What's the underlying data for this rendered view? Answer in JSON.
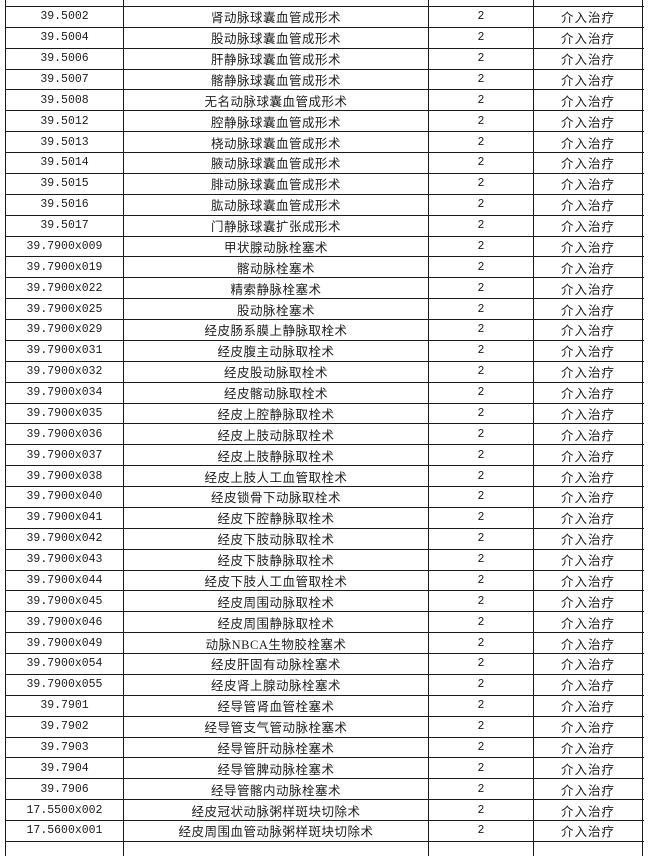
{
  "colors": {
    "border": "#1b1b1b",
    "text": "#1d1d1d",
    "background": "#ffffff"
  },
  "table": {
    "category_value": "介入治疗",
    "rows": [
      {
        "code": "39.5002",
        "name": "肾动脉球囊血管成形术",
        "count": "2",
        "category": "介入治疗"
      },
      {
        "code": "39.5004",
        "name": "股动脉球囊血管成形术",
        "count": "2",
        "category": "介入治疗"
      },
      {
        "code": "39.5006",
        "name": "肝静脉球囊血管成形术",
        "count": "2",
        "category": "介入治疗"
      },
      {
        "code": "39.5007",
        "name": "髂静脉球囊血管成形术",
        "count": "2",
        "category": "介入治疗"
      },
      {
        "code": "39.5008",
        "name": "无名动脉球囊血管成形术",
        "count": "2",
        "category": "介入治疗"
      },
      {
        "code": "39.5012",
        "name": "腔静脉球囊血管成形术",
        "count": "2",
        "category": "介入治疗"
      },
      {
        "code": "39.5013",
        "name": "桡动脉球囊血管成形术",
        "count": "2",
        "category": "介入治疗"
      },
      {
        "code": "39.5014",
        "name": "腋动脉球囊血管成形术",
        "count": "2",
        "category": "介入治疗"
      },
      {
        "code": "39.5015",
        "name": "腓动脉球囊血管成形术",
        "count": "2",
        "category": "介入治疗"
      },
      {
        "code": "39.5016",
        "name": "肱动脉球囊血管成形术",
        "count": "2",
        "category": "介入治疗"
      },
      {
        "code": "39.5017",
        "name": "门静脉球囊扩张成形术",
        "count": "2",
        "category": "介入治疗"
      },
      {
        "code": "39.7900x009",
        "name": "甲状腺动脉栓塞术",
        "count": "2",
        "category": "介入治疗"
      },
      {
        "code": "39.7900x019",
        "name": "髂动脉栓塞术",
        "count": "2",
        "category": "介入治疗"
      },
      {
        "code": "39.7900x022",
        "name": "精索静脉栓塞术",
        "count": "2",
        "category": "介入治疗"
      },
      {
        "code": "39.7900x025",
        "name": "股动脉栓塞术",
        "count": "2",
        "category": "介入治疗"
      },
      {
        "code": "39.7900x029",
        "name": "经皮肠系膜上静脉取栓术",
        "count": "2",
        "category": "介入治疗"
      },
      {
        "code": "39.7900x031",
        "name": "经皮腹主动脉取栓术",
        "count": "2",
        "category": "介入治疗"
      },
      {
        "code": "39.7900x032",
        "name": "经皮股动脉取栓术",
        "count": "2",
        "category": "介入治疗"
      },
      {
        "code": "39.7900x034",
        "name": "经皮髂动脉取栓术",
        "count": "2",
        "category": "介入治疗"
      },
      {
        "code": "39.7900x035",
        "name": "经皮上腔静脉取栓术",
        "count": "2",
        "category": "介入治疗"
      },
      {
        "code": "39.7900x036",
        "name": "经皮上肢动脉取栓术",
        "count": "2",
        "category": "介入治疗"
      },
      {
        "code": "39.7900x037",
        "name": "经皮上肢静脉取栓术",
        "count": "2",
        "category": "介入治疗"
      },
      {
        "code": "39.7900x038",
        "name": "经皮上肢人工血管取栓术",
        "count": "2",
        "category": "介入治疗"
      },
      {
        "code": "39.7900x040",
        "name": "经皮锁骨下动脉取栓术",
        "count": "2",
        "category": "介入治疗"
      },
      {
        "code": "39.7900x041",
        "name": "经皮下腔静脉取栓术",
        "count": "2",
        "category": "介入治疗"
      },
      {
        "code": "39.7900x042",
        "name": "经皮下肢动脉取栓术",
        "count": "2",
        "category": "介入治疗"
      },
      {
        "code": "39.7900x043",
        "name": "经皮下肢静脉取栓术",
        "count": "2",
        "category": "介入治疗"
      },
      {
        "code": "39.7900x044",
        "name": "经皮下肢人工血管取栓术",
        "count": "2",
        "category": "介入治疗"
      },
      {
        "code": "39.7900x045",
        "name": "经皮周围动脉取栓术",
        "count": "2",
        "category": "介入治疗"
      },
      {
        "code": "39.7900x046",
        "name": "经皮周围静脉取栓术",
        "count": "2",
        "category": "介入治疗"
      },
      {
        "code": "39.7900x049",
        "name": "动脉NBCA生物胶栓塞术",
        "count": "2",
        "category": "介入治疗"
      },
      {
        "code": "39.7900x054",
        "name": "经皮肝固有动脉栓塞术",
        "count": "2",
        "category": "介入治疗"
      },
      {
        "code": "39.7900x055",
        "name": "经皮肾上腺动脉栓塞术",
        "count": "2",
        "category": "介入治疗"
      },
      {
        "code": "39.7901",
        "name": "经导管肾血管栓塞术",
        "count": "2",
        "category": "介入治疗"
      },
      {
        "code": "39.7902",
        "name": "经导管支气管动脉栓塞术",
        "count": "2",
        "category": "介入治疗"
      },
      {
        "code": "39.7903",
        "name": "经导管肝动脉栓塞术",
        "count": "2",
        "category": "介入治疗"
      },
      {
        "code": "39.7904",
        "name": "经导管脾动脉栓塞术",
        "count": "2",
        "category": "介入治疗"
      },
      {
        "code": "39.7906",
        "name": "经导管髂内动脉栓塞术",
        "count": "2",
        "category": "介入治疗"
      },
      {
        "code": "17.5500x002",
        "name": "经皮冠状动脉粥样斑块切除术",
        "count": "2",
        "category": "介入治疗"
      },
      {
        "code": "17.5600x001",
        "name": "经皮周围血管动脉粥样斑块切除术",
        "count": "2",
        "category": "介入治疗"
      }
    ]
  }
}
